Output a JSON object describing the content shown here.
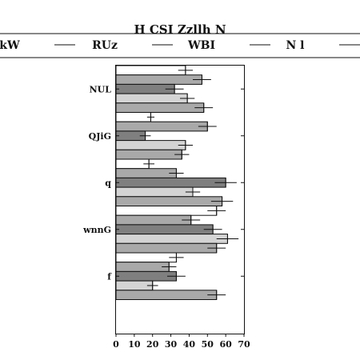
{
  "chart_data": {
    "type": "bar",
    "orientation": "horizontal",
    "title": "H CSI Zzllh  N",
    "categories": [
      "NUL",
      "QJiG",
      "q",
      "wnnG",
      "f"
    ],
    "series": [
      {
        "name": "kW",
        "color": "#ffffff",
        "values": [
          38,
          19,
          18,
          55,
          33
        ]
      },
      {
        "name": "RUz",
        "color": "#a9a9a9",
        "values": [
          47,
          50,
          33,
          41,
          29
        ]
      },
      {
        "name": "WBI",
        "color": "#7f7f7f",
        "values": [
          32,
          16,
          60,
          53,
          33
        ]
      },
      {
        "name": "N l",
        "color": "#d4d4d4",
        "values": [
          39,
          38,
          42,
          61,
          20
        ]
      },
      {
        "name": "",
        "color": "#a9a9a9",
        "values": [
          48,
          36,
          58,
          55,
          55
        ]
      }
    ],
    "errors": [
      [
        4,
        2,
        3,
        5,
        4
      ],
      [
        5,
        5,
        4,
        5,
        4
      ],
      [
        5,
        3,
        6,
        5,
        5
      ],
      [
        4,
        4,
        4,
        6,
        3
      ],
      [
        5,
        4,
        6,
        5,
        5
      ]
    ],
    "xlim": [
      0,
      70
    ],
    "xticks": [
      0,
      10,
      20,
      30,
      40,
      50,
      60,
      70
    ],
    "xlabel": "",
    "ylabel": "",
    "grid": false,
    "legend": "top"
  }
}
